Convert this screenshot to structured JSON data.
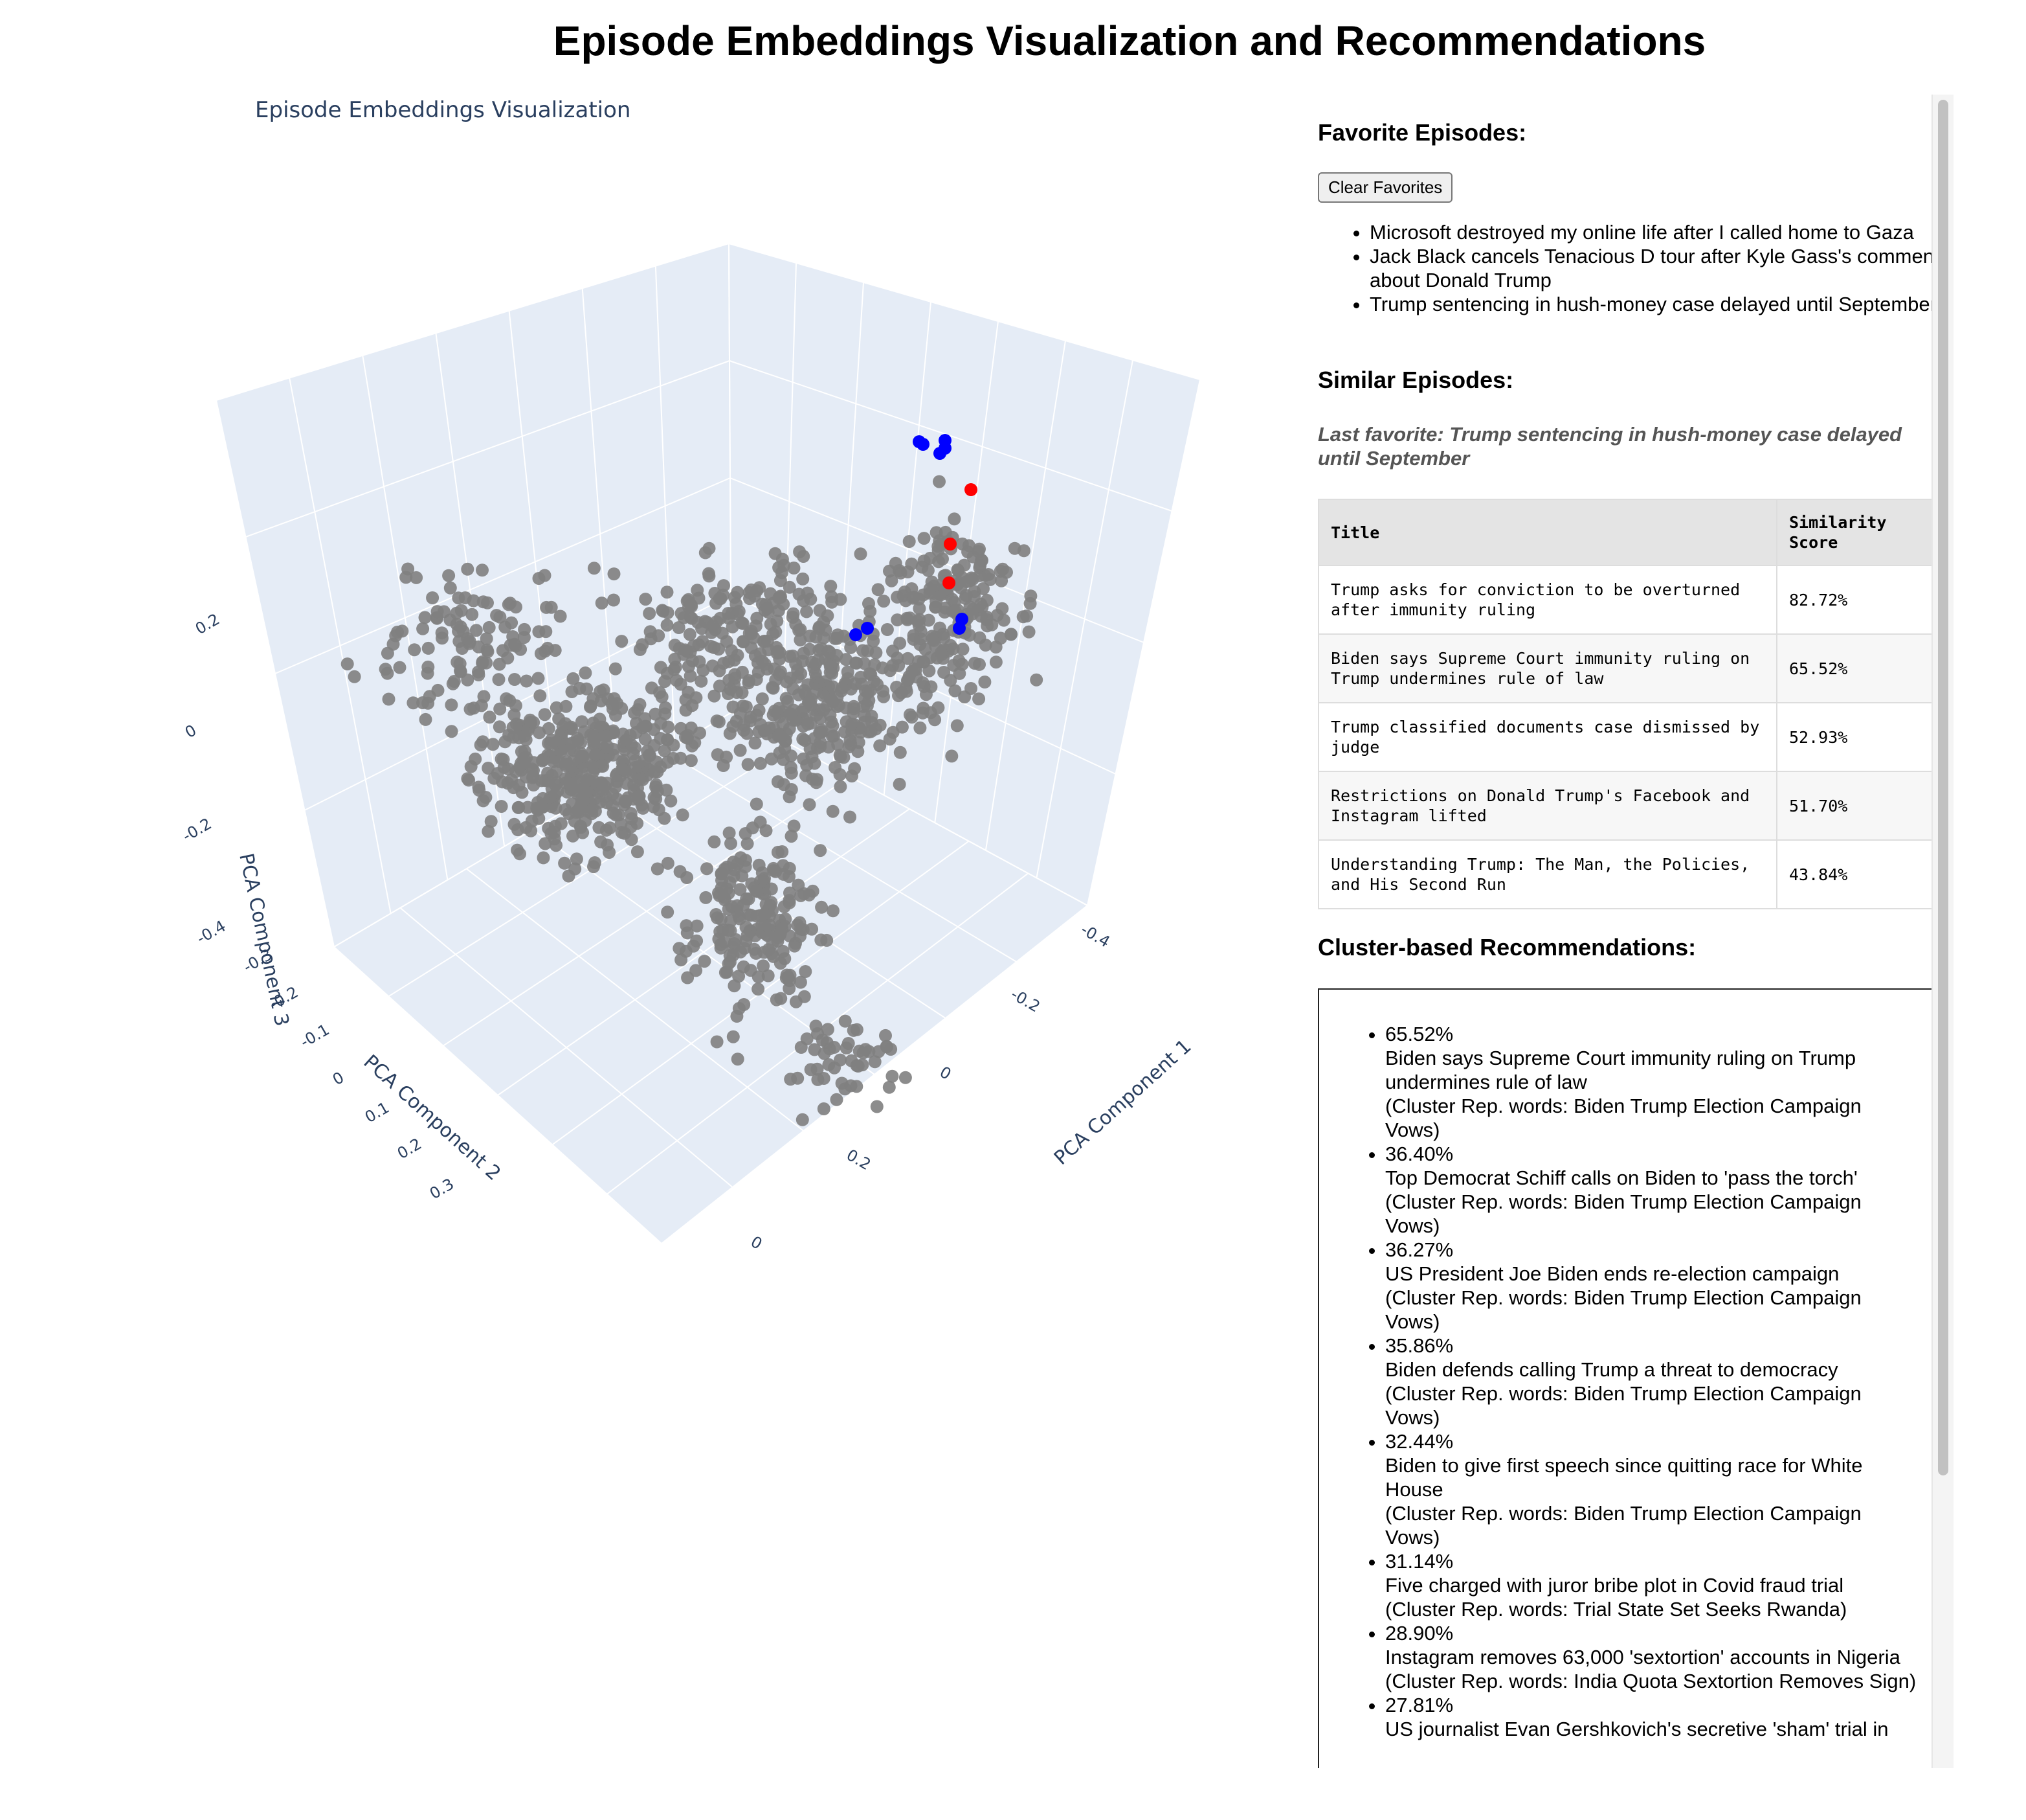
{
  "page": {
    "title": "Episode Embeddings Visualization and Recommendations"
  },
  "plot": {
    "title": "Episode Embeddings Visualization",
    "axes": {
      "x": {
        "label": "PCA Component 1",
        "ticks": [
          "-0.4",
          "-0.2",
          "0",
          "0.2",
          "0"
        ]
      },
      "y": {
        "label": "PCA Component 2",
        "ticks": [
          "-0.3",
          "-0.2",
          "-0.1",
          "0",
          "0.1",
          "0.2",
          "0.3"
        ]
      },
      "z": {
        "label": "PCA Component 3",
        "ticks": [
          "-0.4",
          "-0.2",
          "0",
          "0.2"
        ]
      }
    },
    "colors": {
      "default": "#808080",
      "favorite": "#0000ff",
      "similar": "#ff0000",
      "pane": "#e5ecf6",
      "grid": "#ffffff"
    }
  },
  "chart_data": {
    "type": "scatter",
    "title": "Episode Embeddings Visualization",
    "xlabel": "PCA Component 1",
    "ylabel": "PCA Component 2",
    "zlabel": "PCA Component 3",
    "series": [
      {
        "name": "episodes",
        "color": "#808080"
      },
      {
        "name": "favorites",
        "color": "#0000ff"
      },
      {
        "name": "similar",
        "color": "#ff0000"
      }
    ]
  },
  "favorites": {
    "heading": "Favorite Episodes:",
    "clear_label": "Clear Favorites",
    "items": [
      "Microsoft destroyed my online life after I called home to Gaza",
      "Jack Black cancels Tenacious D tour after Kyle Gass's comments about Donald Trump",
      "Trump sentencing in hush-money case delayed until September"
    ]
  },
  "similar": {
    "heading": "Similar Episodes:",
    "last_favorite": "Last favorite: Trump sentencing in hush-money case delayed until September",
    "columns": {
      "title": "Title",
      "score": "Similarity Score"
    },
    "rows": [
      {
        "title": "Trump asks for conviction to be overturned after immunity ruling",
        "score": "82.72%"
      },
      {
        "title": "Biden says Supreme Court immunity ruling on Trump undermines rule of law",
        "score": "65.52%"
      },
      {
        "title": "Trump classified documents case dismissed by judge",
        "score": "52.93%"
      },
      {
        "title": "Restrictions on Donald Trump's Facebook and Instagram lifted",
        "score": "51.70%"
      },
      {
        "title": "Understanding Trump: The Man, the Policies, and His Second Run",
        "score": "43.84%"
      }
    ]
  },
  "cluster": {
    "heading": "Cluster-based Recommendations:",
    "items": [
      {
        "score": "65.52%",
        "title": "Biden says Supreme Court immunity ruling on Trump undermines rule of law",
        "words": "(Cluster Rep. words: Biden Trump Election Campaign Vows)"
      },
      {
        "score": "36.40%",
        "title": "Top Democrat Schiff calls on Biden to 'pass the torch'",
        "words": "(Cluster Rep. words: Biden Trump Election Campaign Vows)"
      },
      {
        "score": "36.27%",
        "title": "US President Joe Biden ends re-election campaign",
        "words": "(Cluster Rep. words: Biden Trump Election Campaign Vows)"
      },
      {
        "score": "35.86%",
        "title": "Biden defends calling Trump a threat to democracy",
        "words": "(Cluster Rep. words: Biden Trump Election Campaign Vows)"
      },
      {
        "score": "32.44%",
        "title": "Biden to give first speech since quitting race for White House",
        "words": "(Cluster Rep. words: Biden Trump Election Campaign Vows)"
      },
      {
        "score": "31.14%",
        "title": "Five charged with juror bribe plot in Covid fraud trial",
        "words": "(Cluster Rep. words: Trial State Set Seeks Rwanda)"
      },
      {
        "score": "28.90%",
        "title": "Instagram removes 63,000 'sextortion' accounts in Nigeria",
        "words": "(Cluster Rep. words: India Quota Sextortion Removes Sign)"
      },
      {
        "score": "27.81%",
        "title": "US journalist Evan Gershkovich's secretive 'sham' trial in",
        "words": ""
      }
    ]
  }
}
